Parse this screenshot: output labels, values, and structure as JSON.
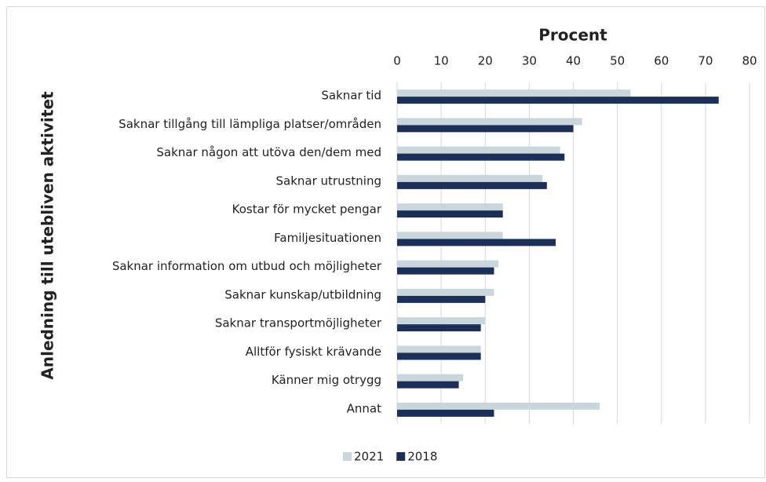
{
  "chart_data": {
    "type": "barh",
    "x_label": "Procent",
    "y_label": "Anledning till utebliven aktivitet",
    "categories": [
      "Saknar tid",
      "Saknar tillgång till lämpliga platser/områden",
      "Saknar någon att utöva den/dem med",
      "Saknar utrustning",
      "Kostar för mycket pengar",
      "Familjesituationen",
      "Saknar information om utbud och möjligheter",
      "Saknar kunskap/utbildning",
      "Saknar transportmöjligheter",
      "Alltför fysiskt krävande",
      "Känner mig otrygg",
      "Annat"
    ],
    "series": [
      {
        "name": "2021",
        "color": "#c9d6dc",
        "values": [
          53,
          42,
          37,
          33,
          24,
          24,
          23,
          22,
          20,
          19,
          15,
          46
        ]
      },
      {
        "name": "2018",
        "color": "#1b2f57",
        "values": [
          73,
          40,
          38,
          34,
          24,
          36,
          22,
          20,
          19,
          19,
          14,
          22
        ]
      }
    ],
    "xlim": [
      0,
      80
    ],
    "xticks": [
      0,
      10,
      20,
      30,
      40,
      50,
      60,
      70,
      80
    ],
    "grid": true,
    "legend": "bottom"
  }
}
